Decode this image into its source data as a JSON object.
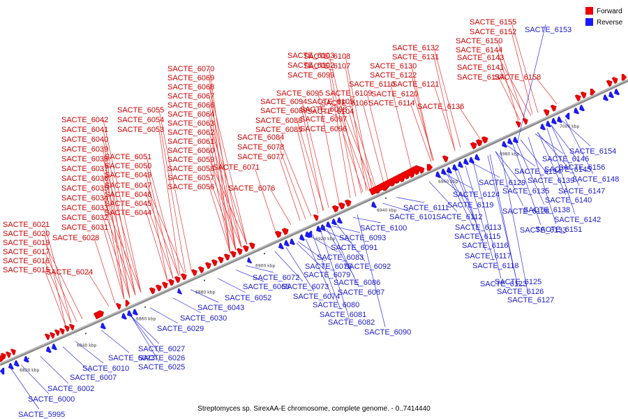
{
  "legend": [
    {
      "label": "Forward",
      "color": "#ee0000"
    },
    {
      "label": "Reverse",
      "color": "#1a1aff"
    }
  ],
  "caption": "Streptomyces sp. SirexAA-E chromosome, complete genome. - 0..7414440",
  "tick_labels": [
    "6820 kbp",
    "6840 kbp",
    "6860 kbp",
    "6880 kbp",
    "6900 kbp",
    "6920 kbp",
    "6940 kbp",
    "6960 kbp",
    "6980 kbp",
    "7000 kbp"
  ],
  "forward_genes": [
    "SACTE_6015",
    "SACTE_6016",
    "SACTE_6017",
    "SACTE_6019",
    "SACTE_6020",
    "SACTE_6021",
    "SACTE_6024",
    "SACTE_6028",
    "SACTE_6031",
    "SACTE_6032",
    "SACTE_6033",
    "SACTE_6034",
    "SACTE_6035",
    "SACTE_6036",
    "SACTE_6037",
    "SACTE_6038",
    "SACTE_6039",
    "SACTE_6040",
    "SACTE_6041",
    "SACTE_6042",
    "SACTE_6044",
    "SACTE_6045",
    "SACTE_6046",
    "SACTE_6047",
    "SACTE_6049",
    "SACTE_6050",
    "SACTE_6051",
    "SACTE_6053",
    "SACTE_6054",
    "SACTE_6055",
    "SACTE_6056",
    "SACTE_6057",
    "SACTE_6058",
    "SACTE_6059",
    "SACTE_6060",
    "SACTE_6061",
    "SACTE_6062",
    "SACTE_6063",
    "SACTE_6064",
    "SACTE_6066",
    "SACTE_6067",
    "SACTE_6068",
    "SACTE_6069",
    "SACTE_6070",
    "SACTE_6071",
    "SACTE_6076",
    "SACTE_6077",
    "SACTE_6078",
    "SACTE_6084",
    "SACTE_6085",
    "SACTE_6088",
    "SACTE_6089",
    "SACTE_6094",
    "SACTE_6095",
    "SACTE_6096",
    "SACTE_6097",
    "SACTE_6098",
    "SACTE_6099",
    "SACTE_6102",
    "SACTE_6103",
    "SACTE_6104",
    "SACTE_6105",
    "SACTE_6106",
    "SACTE_6107",
    "SACTE_6108",
    "SACTE_6109",
    "SACTE_6110",
    "SACTE_6114",
    "SACTE_6120",
    "SACTE_6121",
    "SACTE_6122",
    "SACTE_6130",
    "SACTE_6131",
    "SACTE_6132",
    "SACTE_6136",
    "SACTE_6137",
    "SACTE_6141",
    "SACTE_6143",
    "SACTE_6144",
    "SACTE_6150",
    "SACTE_6152",
    "SACTE_6155",
    "SACTE_6158"
  ],
  "reverse_genes": [
    "SACTE_5995",
    "SACTE_6000",
    "SACTE_6002",
    "SACTE_6007",
    "SACTE_6010",
    "SACTE_6023",
    "SACTE_6025",
    "SACTE_6026",
    "SACTE_6027",
    "SACTE_6029",
    "SACTE_6030",
    "SACTE_6043",
    "SACTE_6052",
    "SACTE_6065",
    "SACTE_6072",
    "SACTE_6073",
    "SACTE_6074",
    "SACTE_6075",
    "SACTE_6079",
    "SACTE_6080",
    "SACTE_6081",
    "SACTE_6082",
    "SACTE_6083",
    "SACTE_6086",
    "SACTE_6087",
    "SACTE_6090",
    "SACTE_6091",
    "SACTE_6092",
    "SACTE_6093",
    "SACTE_6100",
    "SACTE_6101",
    "SACTE_6111",
    "SACTE_6112",
    "SACTE_6113",
    "SACTE_6115",
    "SACTE_6116",
    "SACTE_6117",
    "SACTE_6118",
    "SACTE_6119",
    "SACTE_6123",
    "SACTE_6124",
    "SACTE_6125",
    "SACTE_6126",
    "SACTE_6127",
    "SACTE_6128",
    "SACTE_6129",
    "SACTE_6133",
    "SACTE_6134",
    "SACTE_6135",
    "SACTE_6138",
    "SACTE_6139",
    "SACTE_6140",
    "SACTE_6142",
    "SACTE_6145",
    "SACTE_6146",
    "SACTE_6147",
    "SACTE_6148",
    "SACTE_6151",
    "SACTE_6153",
    "SACTE_6154",
    "SACTE_6156"
  ]
}
